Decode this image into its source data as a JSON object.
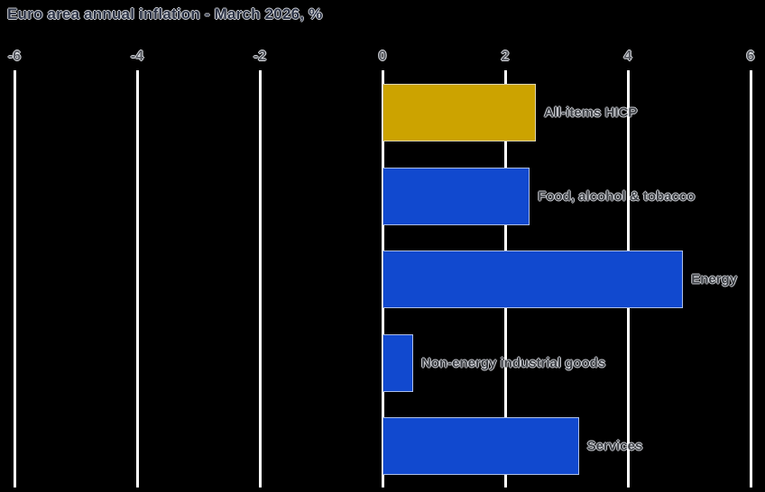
{
  "page": {
    "background": "#000000"
  },
  "chart_data": {
    "type": "bar",
    "orientation": "horizontal",
    "title": "Euro area annual inflation - March 2026, %",
    "categories": [
      "All-items HICP",
      "Food, alcohol & tobacco",
      "Energy",
      "Non-energy industrial goods",
      "Services"
    ],
    "values": [
      2.5,
      2.4,
      4.9,
      0.5,
      3.2
    ],
    "unit": "%",
    "xlim": [
      -6,
      6
    ],
    "x_ticks": [
      "-6",
      "-4",
      "-2",
      "0",
      "2",
      "4",
      "6"
    ],
    "grid": true,
    "legend": "none",
    "value_axis_position": "top",
    "bar_colors": [
      "#CCA300",
      "#1149CF",
      "#1149CF",
      "#1149CF",
      "#1149CF"
    ],
    "gridline_color": "#FFFFFF",
    "background_color": "#000000",
    "accent_gold": "#CCA300",
    "accent_blue": "#1149CF"
  }
}
